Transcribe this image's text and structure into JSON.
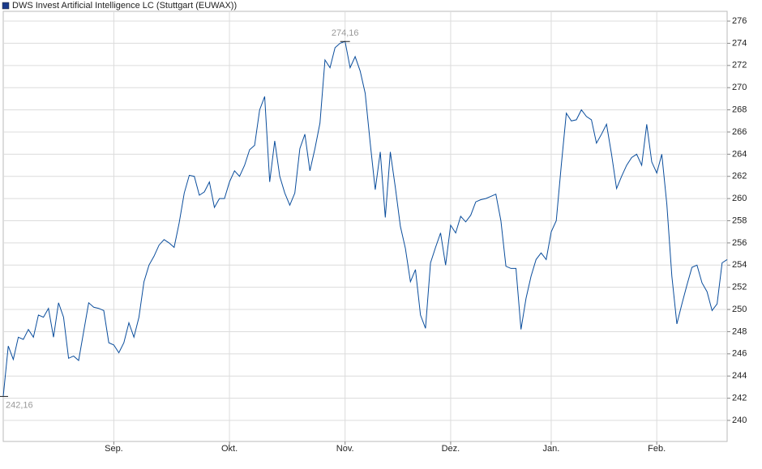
{
  "chart_data": {
    "type": "line",
    "categories": [
      null,
      null,
      null,
      null,
      null,
      null,
      null,
      null,
      null,
      null,
      null,
      null,
      null,
      null,
      null,
      null,
      null,
      null,
      null,
      null,
      null,
      null,
      "Sep.",
      null,
      null,
      null,
      null,
      null,
      null,
      null,
      null,
      null,
      null,
      null,
      null,
      null,
      null,
      null,
      null,
      null,
      null,
      null,
      null,
      null,
      null,
      "Okt.",
      null,
      null,
      null,
      null,
      null,
      null,
      null,
      null,
      null,
      null,
      null,
      null,
      null,
      null,
      null,
      null,
      null,
      null,
      null,
      null,
      null,
      null,
      "Nov.",
      null,
      null,
      null,
      null,
      null,
      null,
      null,
      null,
      null,
      null,
      null,
      null,
      null,
      null,
      null,
      null,
      null,
      null,
      null,
      null,
      "Dez.",
      null,
      null,
      null,
      null,
      null,
      null,
      null,
      null,
      null,
      null,
      null,
      null,
      null,
      null,
      null,
      null,
      null,
      null,
      null,
      "Jan.",
      null,
      null,
      null,
      null,
      null,
      null,
      null,
      null,
      null,
      null,
      null,
      null,
      null,
      null,
      null,
      null,
      null,
      null,
      null,
      null,
      "Feb.",
      null,
      null,
      null,
      null,
      null,
      null,
      null,
      null,
      null,
      null,
      null,
      null,
      null,
      null
    ],
    "series": [
      {
        "name": "DWS Invest Artificial Intelligence LC (Stuttgart (EUWAX))",
        "color": "#0a4d9c",
        "values": [
          242.16,
          246.7,
          245.5,
          247.5,
          247.3,
          248.2,
          247.5,
          249.5,
          249.3,
          250.1,
          247.5,
          250.6,
          249.3,
          245.6,
          245.8,
          245.4,
          248.0,
          250.6,
          250.2,
          250.1,
          249.9,
          247.0,
          246.8,
          246.1,
          247.0,
          248.8,
          247.5,
          249.3,
          252.5,
          254.0,
          254.8,
          255.8,
          256.3,
          256.0,
          255.6,
          257.8,
          260.5,
          262.1,
          262.0,
          260.3,
          260.6,
          261.5,
          259.2,
          260.0,
          260.0,
          261.5,
          262.5,
          262.0,
          263.0,
          264.4,
          264.8,
          268.0,
          269.2,
          261.5,
          265.2,
          262.0,
          260.5,
          259.4,
          260.5,
          264.5,
          265.8,
          262.5,
          264.5,
          266.8,
          272.5,
          271.8,
          273.6,
          274.0,
          274.16,
          271.8,
          272.8,
          271.5,
          269.5,
          265.0,
          260.8,
          264.2,
          258.3,
          264.2,
          261.0,
          257.5,
          255.5,
          252.5,
          253.6,
          249.5,
          248.3,
          254.2,
          255.6,
          256.9,
          254.0,
          257.6,
          256.9,
          258.4,
          257.9,
          258.5,
          259.7,
          259.9,
          260.0,
          260.2,
          260.4,
          258.0,
          253.9,
          253.7,
          253.7,
          248.2,
          251.0,
          253.0,
          254.5,
          255.1,
          254.5,
          257.0,
          258.0,
          263.0,
          267.7,
          267.0,
          267.1,
          268.0,
          267.4,
          267.1,
          265.0,
          265.8,
          266.7,
          264.0,
          260.9,
          262.0,
          263.0,
          263.7,
          264.0,
          263.0,
          266.7,
          263.3,
          262.3,
          264.0,
          259.5,
          253.0,
          248.7,
          250.5,
          252.2,
          253.8,
          254.0,
          252.4,
          251.6,
          249.9,
          250.5,
          254.2,
          254.5
        ]
      }
    ],
    "annotations": [
      {
        "text": "274,16",
        "value": 274.16
      },
      {
        "text": "242,16",
        "value": 242.16
      }
    ],
    "ylim": [
      238.1,
      276.88
    ],
    "yticks": [
      240,
      242,
      244,
      246,
      248,
      250,
      252,
      254,
      256,
      258,
      260,
      262,
      264,
      266,
      268,
      270,
      272,
      274,
      276
    ],
    "grid": true
  }
}
